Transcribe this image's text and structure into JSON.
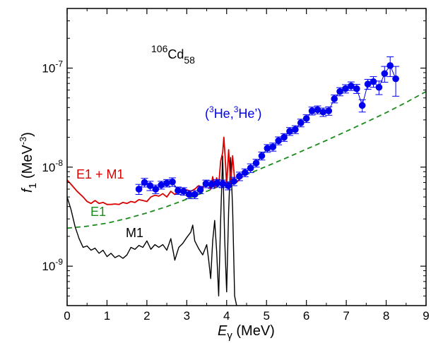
{
  "chart_data": {
    "type": "line",
    "title": "",
    "xlabel_main": "E",
    "xlabel_sub": "γ",
    "xlabel_unit": " (MeV)",
    "ylabel_main": "f",
    "ylabel_sub": "1",
    "ylabel_unit_prefix": "(MeV",
    "ylabel_unit_exp": "-3",
    "ylabel_unit_suffix": ")",
    "xlim": [
      0,
      9
    ],
    "ylim": [
      4e-10,
      4e-07
    ],
    "yscale": "log",
    "x_ticks": [
      "0",
      "1",
      "2",
      "3",
      "4",
      "5",
      "6",
      "7",
      "8",
      "9"
    ],
    "y_ticks": [
      {
        "value": 1e-09,
        "mantissa": "10",
        "exp": "-9"
      },
      {
        "value": 1e-08,
        "mantissa": "10",
        "exp": "-8"
      },
      {
        "value": 1e-07,
        "mantissa": "10",
        "exp": "-7"
      }
    ],
    "nucleus": {
      "mass": "106",
      "symbol": "Cd",
      "neutrons": "58"
    },
    "annotations": {
      "e1_m1": "E1 + M1",
      "e1": "E1",
      "m1": "M1",
      "data_open": "(",
      "data_sup1": "3",
      "data_he1": "He,",
      "data_sup2": "3",
      "data_he2": "He’)"
    },
    "colors": {
      "data": "#0000ee",
      "e1m1": "#dd0000",
      "e1": "#1a8c1a",
      "m1": "#000000"
    },
    "series": [
      {
        "name": "(3He,3He’)",
        "kind": "points",
        "points": [
          [
            1.8,
            6e-09,
            7e-10
          ],
          [
            1.94,
            7e-09,
            7e-10
          ],
          [
            2.08,
            6.5e-09,
            7e-10
          ],
          [
            2.22,
            6e-09,
            6e-10
          ],
          [
            2.36,
            6.6e-09,
            6e-10
          ],
          [
            2.5,
            6.9e-09,
            6e-10
          ],
          [
            2.64,
            7.1e-09,
            7e-10
          ],
          [
            2.78,
            5.8e-09,
            5e-10
          ],
          [
            2.92,
            5.7e-09,
            5e-10
          ],
          [
            3.06,
            5.3e-09,
            5e-10
          ],
          [
            3.2,
            5.3e-09,
            5e-10
          ],
          [
            3.34,
            5.9e-09,
            5e-10
          ],
          [
            3.48,
            6.8e-09,
            6e-10
          ],
          [
            3.62,
            6.7e-09,
            6e-10
          ],
          [
            3.76,
            6.9e-09,
            6e-10
          ],
          [
            3.9,
            6.8e-09,
            6e-10
          ],
          [
            4.04,
            6.5e-09,
            6e-10
          ],
          [
            4.18,
            7.2e-09,
            7e-10
          ],
          [
            4.32,
            8.1e-09,
            8e-10
          ],
          [
            4.46,
            8.8e-09,
            8e-10
          ],
          [
            4.6,
            9.8e-09,
            1e-09
          ],
          [
            4.74,
            1.1e-08,
            1e-09
          ],
          [
            4.88,
            1.3e-08,
            1.2e-09
          ],
          [
            5.02,
            1.55e-08,
            1.4e-09
          ],
          [
            5.16,
            1.6e-08,
            1.5e-09
          ],
          [
            5.3,
            1.85e-08,
            1.7e-09
          ],
          [
            5.44,
            2e-08,
            1.8e-09
          ],
          [
            5.58,
            2.3e-08,
            2.1e-09
          ],
          [
            5.72,
            2.4e-08,
            2.2e-09
          ],
          [
            5.86,
            2.8e-08,
            2.5e-09
          ],
          [
            6.0,
            3.1e-08,
            2.8e-09
          ],
          [
            6.14,
            3.7e-08,
            3.4e-09
          ],
          [
            6.28,
            3.8e-08,
            3.5e-09
          ],
          [
            6.42,
            3.6e-08,
            3.5e-09
          ],
          [
            6.56,
            3.7e-08,
            3.6e-09
          ],
          [
            6.7,
            4.9e-08,
            4.5e-09
          ],
          [
            6.84,
            5.8e-08,
            5.5e-09
          ],
          [
            6.98,
            6.2e-08,
            6e-09
          ],
          [
            7.12,
            6.6e-08,
            6.5e-09
          ],
          [
            7.26,
            6.2e-08,
            6.5e-09
          ],
          [
            7.4,
            4.2e-08,
            6e-09
          ],
          [
            7.54,
            6.9e-08,
            8e-09
          ],
          [
            7.68,
            7.3e-08,
            9e-09
          ],
          [
            7.82,
            6.4e-08,
            1e-08
          ],
          [
            7.96,
            8.8e-08,
            1.6e-08
          ],
          [
            8.1,
            1.06e-07,
            2.4e-08
          ],
          [
            8.24,
            7.8e-08,
            2.6e-08
          ]
        ]
      },
      {
        "name": "E1 + M1",
        "kind": "line",
        "points": [
          [
            0.0,
            7.4e-09
          ],
          [
            0.1,
            6.7e-09
          ],
          [
            0.25,
            5.7e-09
          ],
          [
            0.4,
            5e-09
          ],
          [
            0.5,
            4.5e-09
          ],
          [
            0.6,
            4.3e-09
          ],
          [
            0.7,
            4.6e-09
          ],
          [
            0.8,
            4.3e-09
          ],
          [
            0.9,
            4.4e-09
          ],
          [
            1.0,
            4.2e-09
          ],
          [
            1.1,
            4.2e-09
          ],
          [
            1.2,
            4.25e-09
          ],
          [
            1.3,
            4.2e-09
          ],
          [
            1.4,
            4.4e-09
          ],
          [
            1.5,
            4.3e-09
          ],
          [
            1.6,
            4.5e-09
          ],
          [
            1.7,
            4.4e-09
          ],
          [
            1.8,
            4.7e-09
          ],
          [
            1.9,
            4.6e-09
          ],
          [
            2.0,
            4.5e-09
          ],
          [
            2.1,
            5e-09
          ],
          [
            2.2,
            5.2e-09
          ],
          [
            2.3,
            5.1e-09
          ],
          [
            2.4,
            5.4e-09
          ],
          [
            2.5,
            5e-09
          ],
          [
            2.6,
            5.7e-09
          ],
          [
            2.7,
            5.3e-09
          ],
          [
            2.8,
            5.7e-09
          ],
          [
            2.9,
            5.6e-09
          ],
          [
            3.0,
            5.9e-09
          ],
          [
            3.1,
            5.7e-09
          ],
          [
            3.2,
            6e-09
          ],
          [
            3.3,
            6.5e-09
          ],
          [
            3.4,
            6.2e-09
          ],
          [
            3.5,
            7.3e-09
          ],
          [
            3.6,
            6e-09
          ],
          [
            3.65,
            8e-09
          ],
          [
            3.7,
            6.2e-09
          ],
          [
            3.75,
            7.8e-09
          ],
          [
            3.8,
            6.5e-09
          ],
          [
            3.85,
            1.15e-08
          ],
          [
            3.9,
            1.4e-08
          ],
          [
            3.93,
            2e-08
          ],
          [
            3.96,
            1.3e-08
          ],
          [
            4.0,
            6.5e-09
          ],
          [
            4.05,
            1.5e-08
          ],
          [
            4.1,
            6.8e-09
          ],
          [
            4.15,
            1.3e-08
          ],
          [
            4.2,
            7.5e-09
          ],
          [
            4.25,
            7e-09
          ],
          [
            4.3,
            7.4e-09
          ],
          [
            4.4,
            7.9e-09
          ]
        ]
      },
      {
        "name": "E1",
        "kind": "line",
        "points": [
          [
            0.0,
            2.42e-09
          ],
          [
            0.5,
            2.53e-09
          ],
          [
            1.0,
            2.72e-09
          ],
          [
            1.5,
            3.03e-09
          ],
          [
            2.0,
            3.45e-09
          ],
          [
            2.5,
            4e-09
          ],
          [
            3.0,
            4.75e-09
          ],
          [
            3.5,
            5.7e-09
          ],
          [
            4.0,
            6.9e-09
          ],
          [
            4.5,
            8.4e-09
          ],
          [
            5.0,
            1.02e-08
          ],
          [
            5.5,
            1.24e-08
          ],
          [
            6.0,
            1.52e-08
          ],
          [
            6.5,
            1.86e-08
          ],
          [
            7.0,
            2.3e-08
          ],
          [
            7.5,
            2.85e-08
          ],
          [
            8.0,
            3.55e-08
          ],
          [
            8.5,
            4.5e-08
          ],
          [
            9.0,
            5.8e-08
          ]
        ]
      },
      {
        "name": "M1",
        "kind": "line",
        "points": [
          [
            0.0,
            5e-09
          ],
          [
            0.1,
            3.7e-09
          ],
          [
            0.2,
            2.5e-09
          ],
          [
            0.3,
            1.9e-09
          ],
          [
            0.4,
            1.55e-09
          ],
          [
            0.5,
            1.6e-09
          ],
          [
            0.6,
            1.45e-09
          ],
          [
            0.7,
            1.52e-09
          ],
          [
            0.8,
            1.35e-09
          ],
          [
            0.9,
            1.45e-09
          ],
          [
            1.0,
            1.25e-09
          ],
          [
            1.1,
            1.35e-09
          ],
          [
            1.2,
            1.22e-09
          ],
          [
            1.3,
            1.28e-09
          ],
          [
            1.4,
            1.2e-09
          ],
          [
            1.5,
            1.3e-09
          ],
          [
            1.6,
            1.55e-09
          ],
          [
            1.7,
            1.48e-09
          ],
          [
            1.8,
            1.62e-09
          ],
          [
            1.9,
            1.55e-09
          ],
          [
            2.0,
            1.8e-09
          ],
          [
            2.1,
            1.48e-09
          ],
          [
            2.2,
            1.65e-09
          ],
          [
            2.3,
            1.55e-09
          ],
          [
            2.4,
            1.65e-09
          ],
          [
            2.5,
            1.45e-09
          ],
          [
            2.6,
            1.9e-09
          ],
          [
            2.7,
            1.15e-09
          ],
          [
            2.8,
            1.55e-09
          ],
          [
            2.9,
            1.7e-09
          ],
          [
            3.0,
            1.95e-09
          ],
          [
            3.1,
            2.2e-09
          ],
          [
            3.15,
            2.6e-09
          ],
          [
            3.2,
            1.8e-09
          ],
          [
            3.3,
            1.5e-09
          ],
          [
            3.4,
            1.3e-09
          ],
          [
            3.5,
            1.65e-09
          ],
          [
            3.55,
            1.15e-09
          ],
          [
            3.6,
            7.5e-10
          ],
          [
            3.65,
            1.8e-09
          ],
          [
            3.7,
            2.9e-09
          ],
          [
            3.75,
            1.4e-09
          ],
          [
            3.8,
            5e-10
          ],
          [
            3.85,
            3e-09
          ],
          [
            3.9,
            1.3e-08
          ],
          [
            3.95,
            1.9e-09
          ],
          [
            4.0,
            5.5e-10
          ],
          [
            4.05,
            3.6e-09
          ],
          [
            4.1,
            1.25e-08
          ],
          [
            4.15,
            3.8e-09
          ],
          [
            4.2,
            5e-10
          ],
          [
            4.25,
            4e-10
          ]
        ]
      }
    ]
  }
}
